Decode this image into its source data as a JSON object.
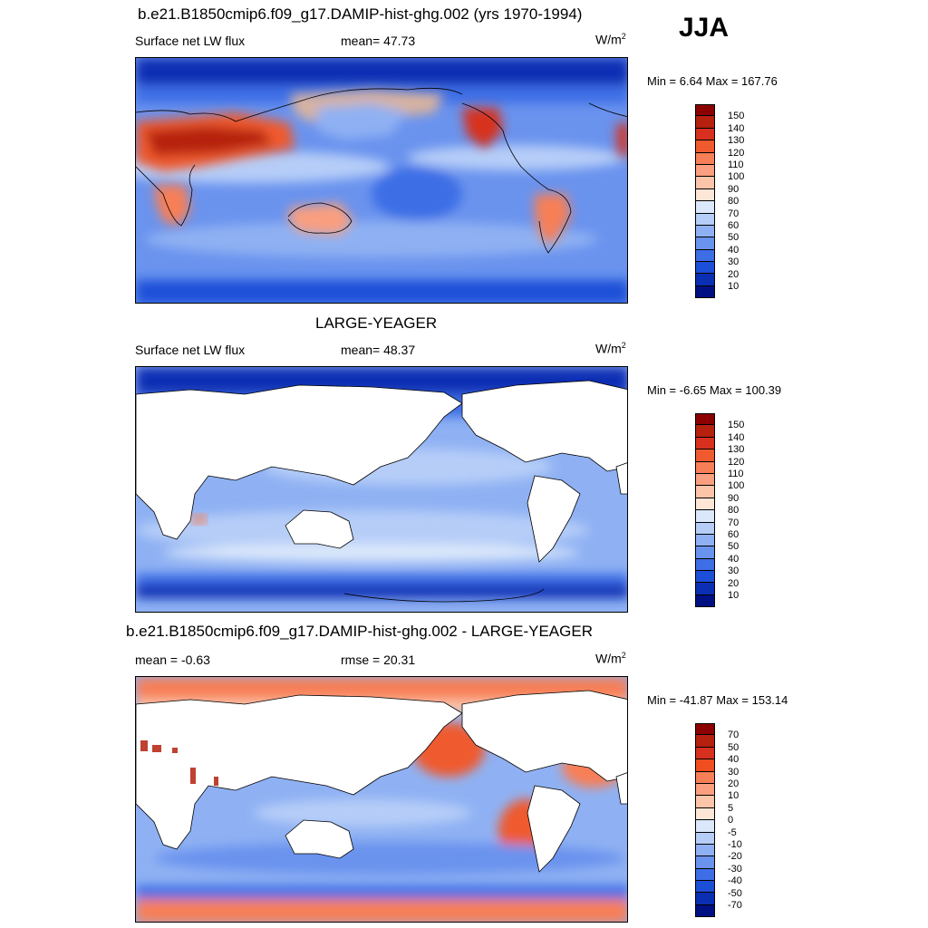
{
  "season": "JJA",
  "panels": [
    {
      "title": "b.e21.B1850cmip6.f09_g17.DAMIP-hist-ghg.002 (yrs 1970-1994)",
      "left_label": "Surface net LW flux",
      "mid_label": "mean=  47.73",
      "units": "W/m",
      "units_sup": "2",
      "minmax": "Min =   6.64 Max = 167.76",
      "kind": "model"
    },
    {
      "title": "LARGE-YEAGER",
      "left_label": "Surface net LW flux",
      "mid_label": "mean=  48.37",
      "units": "W/m",
      "units_sup": "2",
      "minmax": "Min =  -6.65 Max = 100.39",
      "kind": "obs"
    },
    {
      "title": "b.e21.B1850cmip6.f09_g17.DAMIP-hist-ghg.002 - LARGE-YEAGER",
      "left_label": "mean =  -0.63",
      "mid_label": "rmse =  20.31",
      "units": "W/m",
      "units_sup": "2",
      "minmax": "Min = -41.87 Max = 153.14",
      "kind": "diff"
    }
  ],
  "colorbars": {
    "absolute": {
      "labels": [
        "150",
        "140",
        "130",
        "120",
        "110",
        "100",
        "90",
        "80",
        "70",
        "60",
        "50",
        "40",
        "30",
        "20",
        "10"
      ],
      "colors": [
        "#8b0000",
        "#b5200f",
        "#d7301f",
        "#ef5a2e",
        "#f77f57",
        "#fa9f7f",
        "#fcc4a8",
        "#fde6d6",
        "#dbe8fb",
        "#b6cdf8",
        "#8fb1f3",
        "#6a93ee",
        "#3d6ee6",
        "#1c4fd8",
        "#0a2fb3",
        "#000f82"
      ]
    },
    "difference": {
      "labels": [
        "70",
        "50",
        "40",
        "30",
        "20",
        "10",
        "5",
        "0",
        "-5",
        "-10",
        "-20",
        "-30",
        "-40",
        "-50",
        "-70"
      ],
      "colors": [
        "#8b0000",
        "#b5200f",
        "#d7301f",
        "#f04e1e",
        "#f77f57",
        "#fa9f7f",
        "#fcc4a8",
        "#fde6d6",
        "#dbe8fb",
        "#b6cdf8",
        "#8fb1f3",
        "#6a93ee",
        "#3d6ee6",
        "#1c4fd8",
        "#0a2fb3",
        "#000f82"
      ]
    }
  }
}
